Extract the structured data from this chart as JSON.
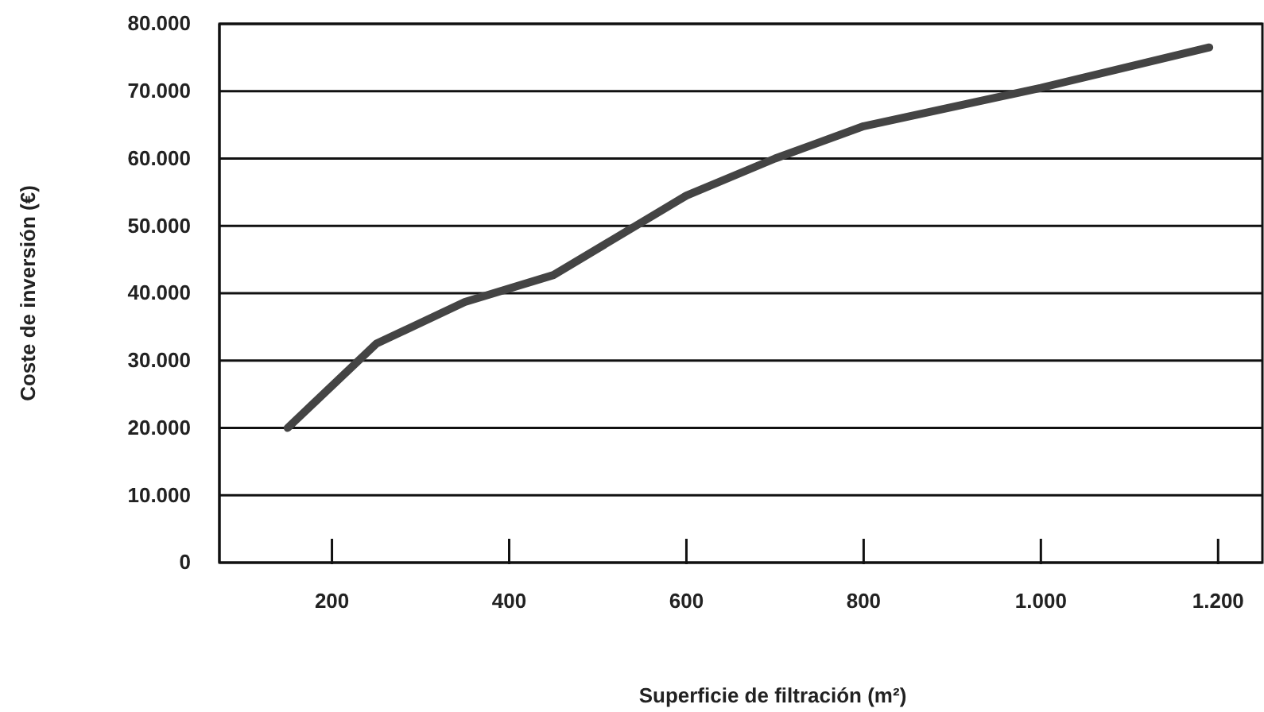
{
  "chart_data": {
    "type": "line",
    "xlabel": "Superficie de filtración (m²)",
    "ylabel": "Coste de inversión (€)",
    "x": [
      150,
      250,
      350,
      450,
      600,
      700,
      800,
      1000,
      1190
    ],
    "series": [
      {
        "color": "#444444",
        "values": [
          20000,
          32500,
          38700,
          42700,
          54500,
          60000,
          64800,
          70500,
          76500
        ]
      }
    ],
    "xlim": [
      73,
      1250
    ],
    "ylim": [
      0,
      80000
    ],
    "xticks": [
      200,
      400,
      600,
      800,
      {
        "value": 1000,
        "label": "1.000"
      },
      {
        "value": 1200,
        "label": "1.200"
      }
    ],
    "yticks": [
      0,
      {
        "value": 10000,
        "label": "10.000"
      },
      {
        "value": 20000,
        "label": "20.000"
      },
      {
        "value": 30000,
        "label": "30.000"
      },
      {
        "value": 40000,
        "label": "40.000"
      },
      {
        "value": 50000,
        "label": "50.000"
      },
      {
        "value": 60000,
        "label": "60.000"
      },
      {
        "value": 70000,
        "label": "70.000"
      },
      {
        "value": 80000,
        "label": "80.000"
      }
    ],
    "grid": "y",
    "marker": "none",
    "line_style": "solid"
  }
}
